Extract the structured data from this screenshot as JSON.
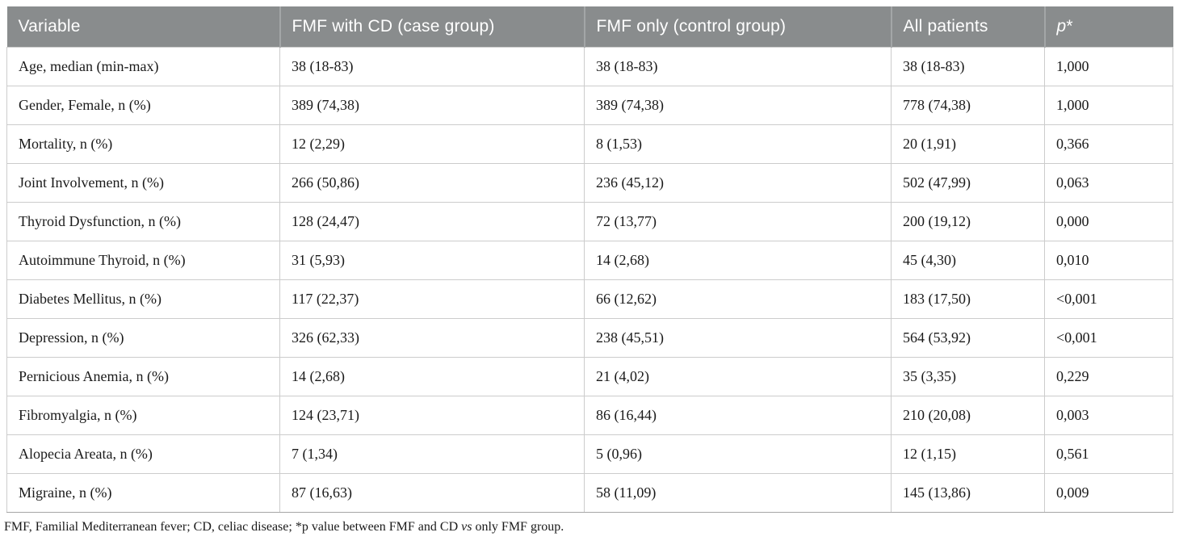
{
  "table": {
    "columns": [
      {
        "key": "variable",
        "label": "Variable"
      },
      {
        "key": "case-group",
        "label": "FMF with CD (case group)"
      },
      {
        "key": "control-group",
        "label": "FMF only (control group)"
      },
      {
        "key": "all-patients",
        "label": "All patients"
      },
      {
        "key": "p-value",
        "label": "p*",
        "italic_label": "p",
        "suffix": "*"
      }
    ],
    "rows": [
      {
        "cells": [
          "Age, median (min-max)",
          "38 (18-83)",
          "38 (18-83)",
          "38 (18-83)",
          "1,000"
        ]
      },
      {
        "cells": [
          "Gender, Female, n (%)",
          "389 (74,38)",
          "389 (74,38)",
          "778 (74,38)",
          "1,000"
        ]
      },
      {
        "cells": [
          "Mortality, n (%)",
          "12 (2,29)",
          "8 (1,53)",
          "20 (1,91)",
          "0,366"
        ]
      },
      {
        "cells": [
          "Joint Involvement, n (%)",
          "266 (50,86)",
          "236 (45,12)",
          "502 (47,99)",
          "0,063"
        ]
      },
      {
        "cells": [
          "Thyroid Dysfunction, n (%)",
          "128 (24,47)",
          "72 (13,77)",
          "200 (19,12)",
          "0,000"
        ]
      },
      {
        "cells": [
          "Autoimmune Thyroid, n (%)",
          "31 (5,93)",
          "14 (2,68)",
          "45 (4,30)",
          "0,010"
        ]
      },
      {
        "cells": [
          "Diabetes Mellitus, n (%)",
          "117 (22,37)",
          "66 (12,62)",
          "183 (17,50)",
          "<0,001"
        ]
      },
      {
        "cells": [
          "Depression, n (%)",
          "326 (62,33)",
          "238 (45,51)",
          "564 (53,92)",
          "<0,001"
        ]
      },
      {
        "cells": [
          "Pernicious Anemia, n (%)",
          "14 (2,68)",
          "21 (4,02)",
          "35 (3,35)",
          "0,229"
        ]
      },
      {
        "cells": [
          "Fibromyalgia, n (%)",
          "124 (23,71)",
          "86 (16,44)",
          "210 (20,08)",
          "0,003"
        ]
      },
      {
        "cells": [
          "Alopecia Areata, n (%)",
          "7 (1,34)",
          "5 (0,96)",
          "12 (1,15)",
          "0,561"
        ]
      },
      {
        "cells": [
          "Migraine, n (%)",
          "87 (16,63)",
          "58 (11,09)",
          "145 (13,86)",
          "0,009"
        ]
      }
    ],
    "footnote": {
      "before_vs": "FMF, Familial Mediterranean fever; CD, celiac disease; *p value between FMF and CD ",
      "vs": "vs",
      "after_vs": " only FMF group."
    }
  },
  "colors": {
    "header_bg": "#898c8d",
    "header_text": "#ffffff",
    "header_divider": "#a3a6a7",
    "row_border": "#cccccc",
    "table_bottom_border": "#a6a6a6",
    "body_text": "#1a1a1a"
  }
}
